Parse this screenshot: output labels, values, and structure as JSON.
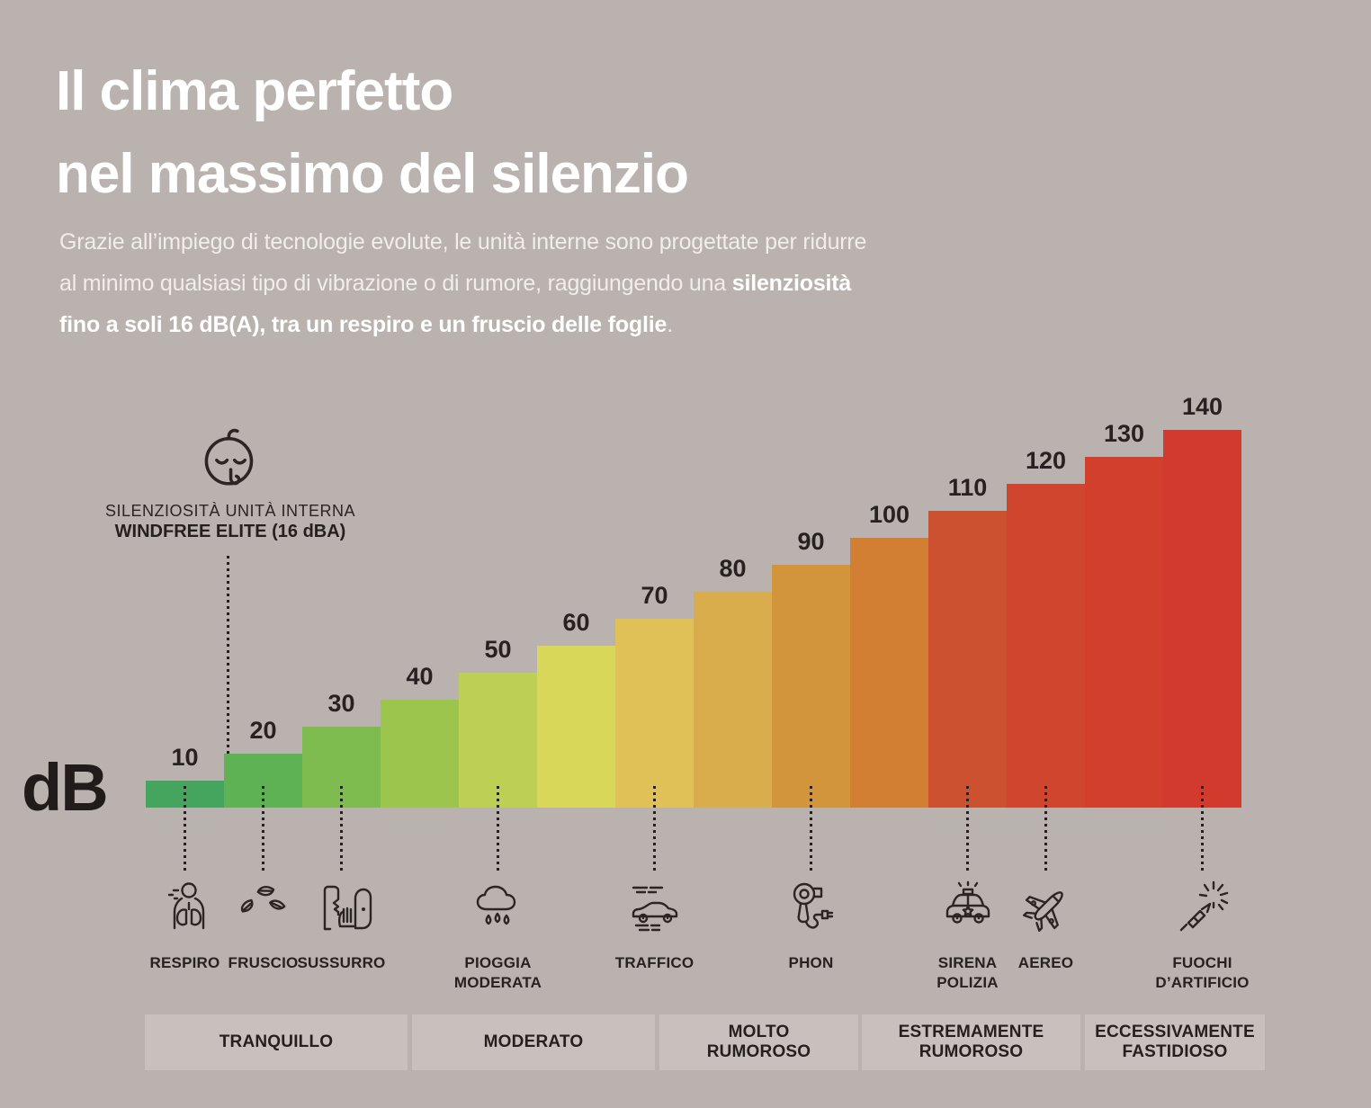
{
  "header": {
    "title_line1": "Il clima perfetto",
    "title_line2": "nel massimo del silenzio",
    "intro_line1": "Grazie all’impiego di tecnologie evolute, le unità interne sono progettate per ridurre",
    "intro_line2_regular": "al minimo qualsiasi tipo di vibrazione o di rumore, raggiungendo una ",
    "intro_line2_bold": "silenziosità",
    "intro_line3_bold": "fino a soli 16 dB(A), tra un respiro e un fruscio delle foglie",
    "intro_line3_tail": "."
  },
  "chart_data": {
    "type": "bar",
    "title": "Scala dei livelli di rumore in decibel",
    "ylabel": "dB",
    "unit": "dB",
    "ylim": [
      0,
      140
    ],
    "grid": false,
    "legend": false,
    "annotation": {
      "icon": "sleeping-baby-icon",
      "line1": "SILENZIOSITÀ UNITÀ INTERNA",
      "line2": "WINDFREE ELITE (16 dBA)",
      "value_dba": 16
    },
    "bars": [
      {
        "value": 10,
        "color": "#45a55f",
        "icon": "breathing-icon",
        "label_lines": [
          "RESPIRO"
        ]
      },
      {
        "value": 20,
        "color": "#5eb254",
        "icon": "leaves-icon",
        "label_lines": [
          "FRUSCIO"
        ]
      },
      {
        "value": 30,
        "color": "#7fbc50",
        "icon": "whisper-icon",
        "label_lines": [
          "SUSSURRO"
        ]
      },
      {
        "value": 40,
        "color": "#9cc54e"
      },
      {
        "value": 50,
        "color": "#bdd054",
        "icon": "rain-cloud-icon",
        "label_lines": [
          "PIOGGIA",
          "MODERATA"
        ]
      },
      {
        "value": 60,
        "color": "#d8d75a"
      },
      {
        "value": 70,
        "color": "#dfc158",
        "icon": "car-traffic-icon",
        "label_lines": [
          "TRAFFICO"
        ]
      },
      {
        "value": 80,
        "color": "#d9ad4b"
      },
      {
        "value": 90,
        "color": "#d3953c",
        "icon": "hair-dryer-icon",
        "label_lines": [
          "PHON"
        ]
      },
      {
        "value": 100,
        "color": "#d27e33"
      },
      {
        "value": 110,
        "color": "#cc5130",
        "icon": "police-car-icon",
        "label_lines": [
          "SIRENA",
          "POLIZIA"
        ]
      },
      {
        "value": 120,
        "color": "#d0452e",
        "icon": "airplane-icon",
        "label_lines": [
          "AEREO"
        ]
      },
      {
        "value": 130,
        "color": "#d23f2c"
      },
      {
        "value": 140,
        "color": "#d23a2e",
        "icon": "fireworks-icon",
        "label_lines": [
          "FUOCHI",
          "D’ARTIFICIO"
        ]
      }
    ],
    "zones": [
      {
        "label_lines": [
          "TRANQUILLO"
        ]
      },
      {
        "label_lines": [
          "MODERATO"
        ]
      },
      {
        "label_lines": [
          "MOLTO",
          "RUMOROSO"
        ]
      },
      {
        "label_lines": [
          "ESTREMAMENTE",
          "RUMOROSO"
        ]
      },
      {
        "label_lines": [
          "ECCESSIVAMENTE",
          "FASTIDIOSO"
        ]
      }
    ]
  },
  "colors": {
    "background": "#b9b2ae",
    "zone_band": "#c7c0bd",
    "text_dark": "#272221",
    "text_light": "#f1edea",
    "title_white": "#ffffff"
  }
}
